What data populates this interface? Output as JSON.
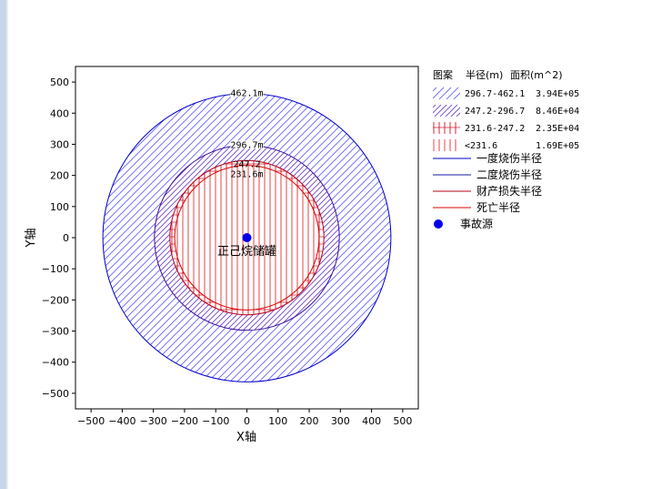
{
  "chart_data": {
    "type": "scatter",
    "xlabel": "X轴",
    "ylabel": "Y轴",
    "xlim": [
      -550,
      550
    ],
    "ylim": [
      -550,
      550
    ],
    "x_ticks": [
      -500,
      -400,
      -300,
      -200,
      -100,
      0,
      100,
      200,
      300,
      400,
      500
    ],
    "y_ticks": [
      -500,
      -400,
      -300,
      -200,
      -100,
      0,
      100,
      200,
      300,
      400,
      500
    ],
    "source": {
      "x": 0,
      "y": 0,
      "label": "正己烷储罐"
    },
    "circles": [
      {
        "name": "一度烧伤半径",
        "radius": 462.1,
        "label": "462.1m",
        "color": "#0000cc"
      },
      {
        "name": "二度烧伤半径",
        "radius": 296.7,
        "label": "296.7m",
        "color": "#3a0fa0"
      },
      {
        "name": "财产损失半径",
        "radius": 247.2,
        "label": "247.2",
        "color": "#b8001a"
      },
      {
        "name": "死亡半径",
        "radius": 231.6,
        "label": "231.6m",
        "color": "#dd0000"
      }
    ],
    "legend": {
      "headers": [
        "图案",
        "半径(m)",
        "面积(m^2)"
      ],
      "rows": [
        {
          "range": "296.7-462.1",
          "area": "3.94E+05",
          "pattern": "hatch-blue"
        },
        {
          "range": "247.2-296.7",
          "area": "8.46E+04",
          "pattern": "hatch-purple"
        },
        {
          "range": "231.6-247.2",
          "area": "2.35E+04",
          "pattern": "vert-cross-red"
        },
        {
          "range": "<231.6",
          "area": "1.69E+05",
          "pattern": "vert-red"
        }
      ],
      "lines": [
        {
          "label": "一度烧伤半径",
          "color": "#0000cc"
        },
        {
          "label": "二度烧伤半径",
          "color": "#1a1aa0"
        },
        {
          "label": "财产损失半径",
          "color": "#b8001a"
        },
        {
          "label": "死亡半径",
          "color": "#dd0000"
        }
      ],
      "marker_label": "事故源",
      "marker_color": "#0000ee"
    }
  }
}
